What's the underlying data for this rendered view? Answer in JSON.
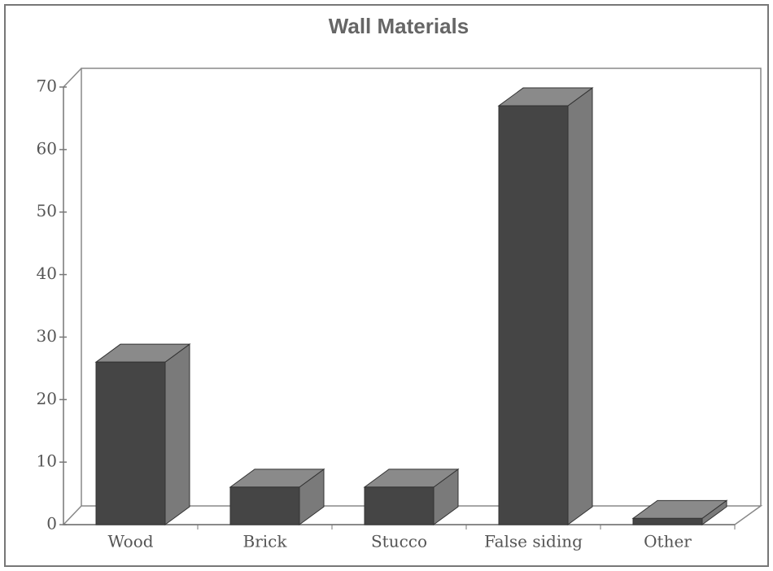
{
  "chart_data": {
    "type": "bar3d",
    "title": "Wall Materials",
    "categories": [
      "Wood",
      "Brick",
      "Stucco",
      "False siding",
      "Other"
    ],
    "values": [
      26,
      6,
      6,
      67,
      1
    ],
    "color": "#454545",
    "ylim": [
      0,
      70
    ],
    "yticks": [
      0,
      10,
      20,
      30,
      40,
      50,
      60,
      70
    ],
    "grid": false
  }
}
